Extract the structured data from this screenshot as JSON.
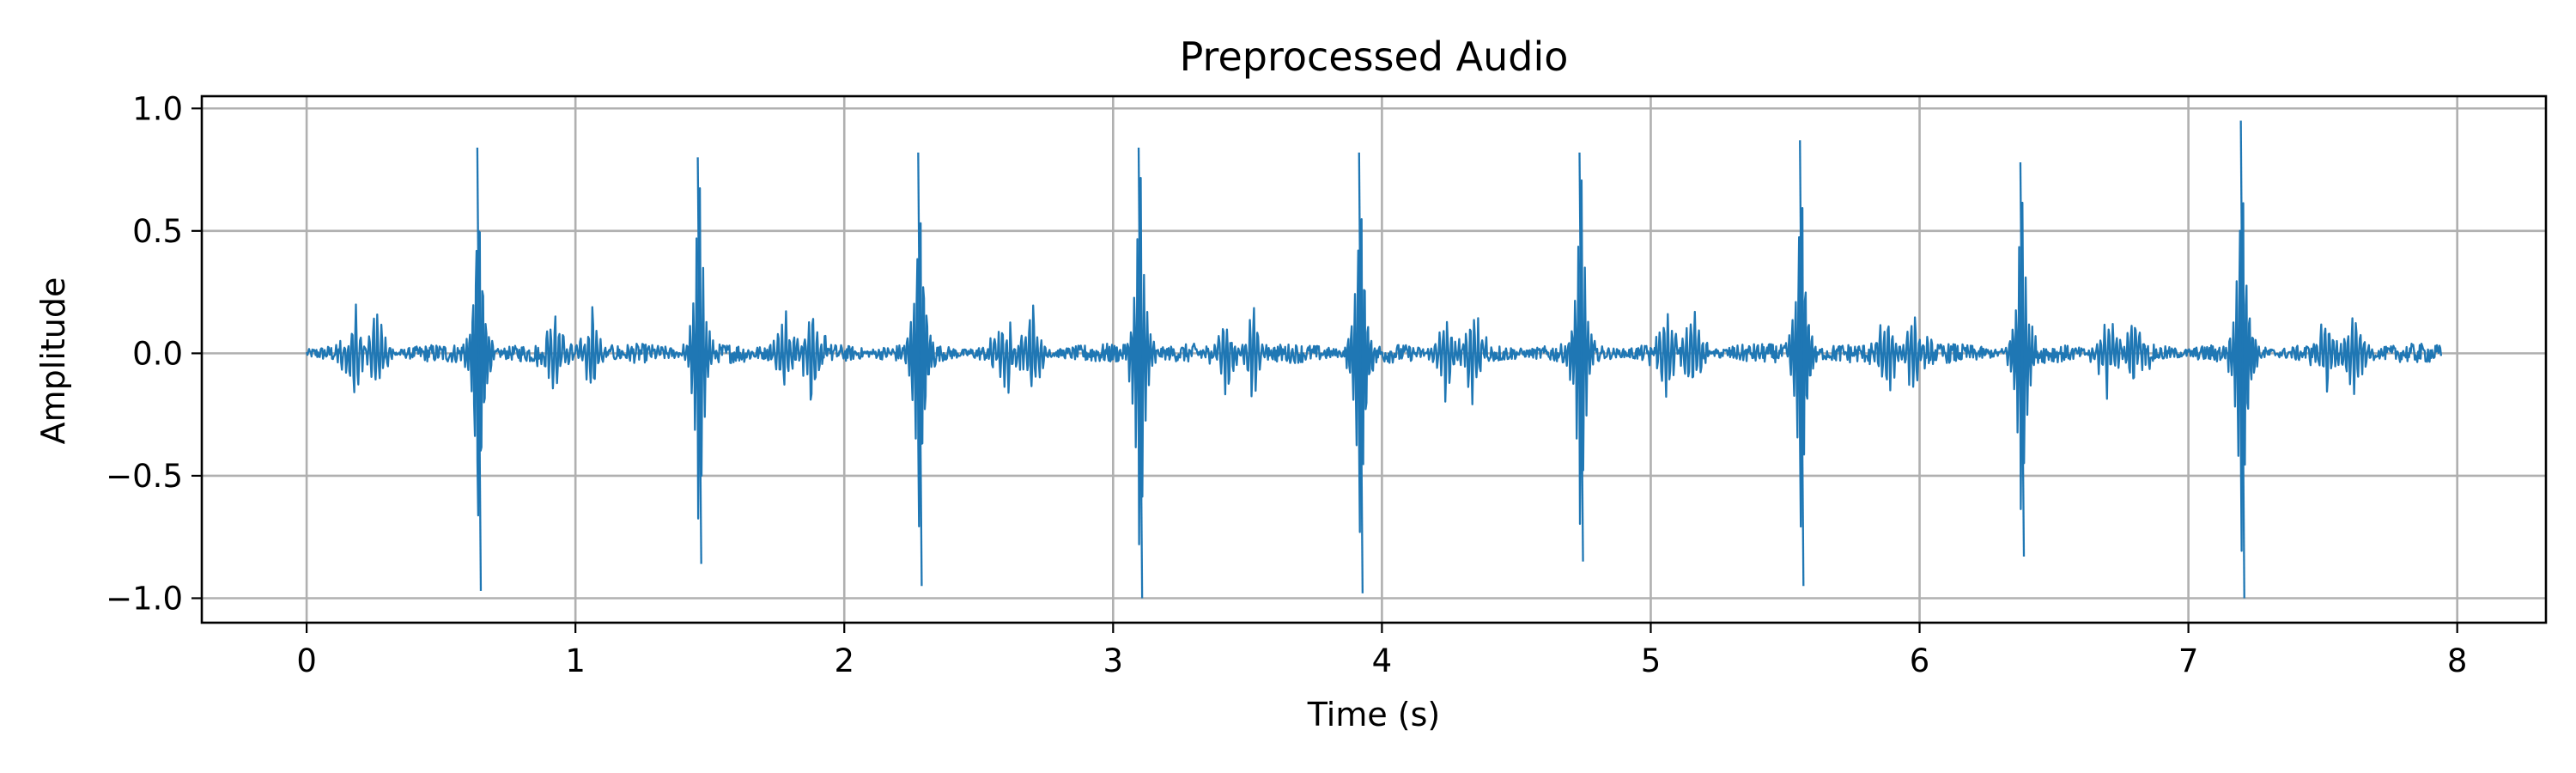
{
  "chart_data": {
    "type": "line",
    "title": "Preprocessed Audio",
    "xlabel": "Time (s)",
    "ylabel": "Amplitude",
    "xlim": [
      -0.39,
      8.33
    ],
    "ylim": [
      -1.1,
      1.05
    ],
    "xticks": [
      0,
      1,
      2,
      3,
      4,
      5,
      6,
      7,
      8
    ],
    "xtick_labels": [
      "0",
      "1",
      "2",
      "3",
      "4",
      "5",
      "6",
      "7",
      "8"
    ],
    "yticks": [
      1.0,
      0.5,
      0.0,
      -0.5,
      -1.0
    ],
    "ytick_labels": [
      "1.0",
      "0.5",
      "0.0",
      "−0.5",
      "−1.0"
    ],
    "grid": true,
    "series": [
      {
        "color": "#1f77b4",
        "duration_s": 7.94,
        "beat_times_s": [
          0.64,
          1.46,
          2.28,
          3.1,
          3.92,
          4.74,
          5.56,
          6.38,
          7.2
        ],
        "beat_peak_max": [
          0.84,
          0.8,
          0.82,
          0.84,
          0.82,
          0.82,
          0.87,
          0.78,
          0.95
        ],
        "beat_peak_min": [
          -0.97,
          -0.86,
          -0.95,
          -1.0,
          -0.98,
          -0.85,
          -0.95,
          -0.83,
          -1.0
        ],
        "secondary_burst_times_s": [
          0.18,
          0.26,
          0.92,
          1.06,
          1.78,
          1.88,
          2.6,
          2.7,
          3.42,
          3.52,
          4.24,
          4.34,
          5.06,
          5.16,
          5.88,
          5.98,
          6.7,
          6.8,
          7.52,
          7.62
        ],
        "background_amplitude": 0.04,
        "secondary_burst_amplitude": 0.2
      }
    ]
  }
}
